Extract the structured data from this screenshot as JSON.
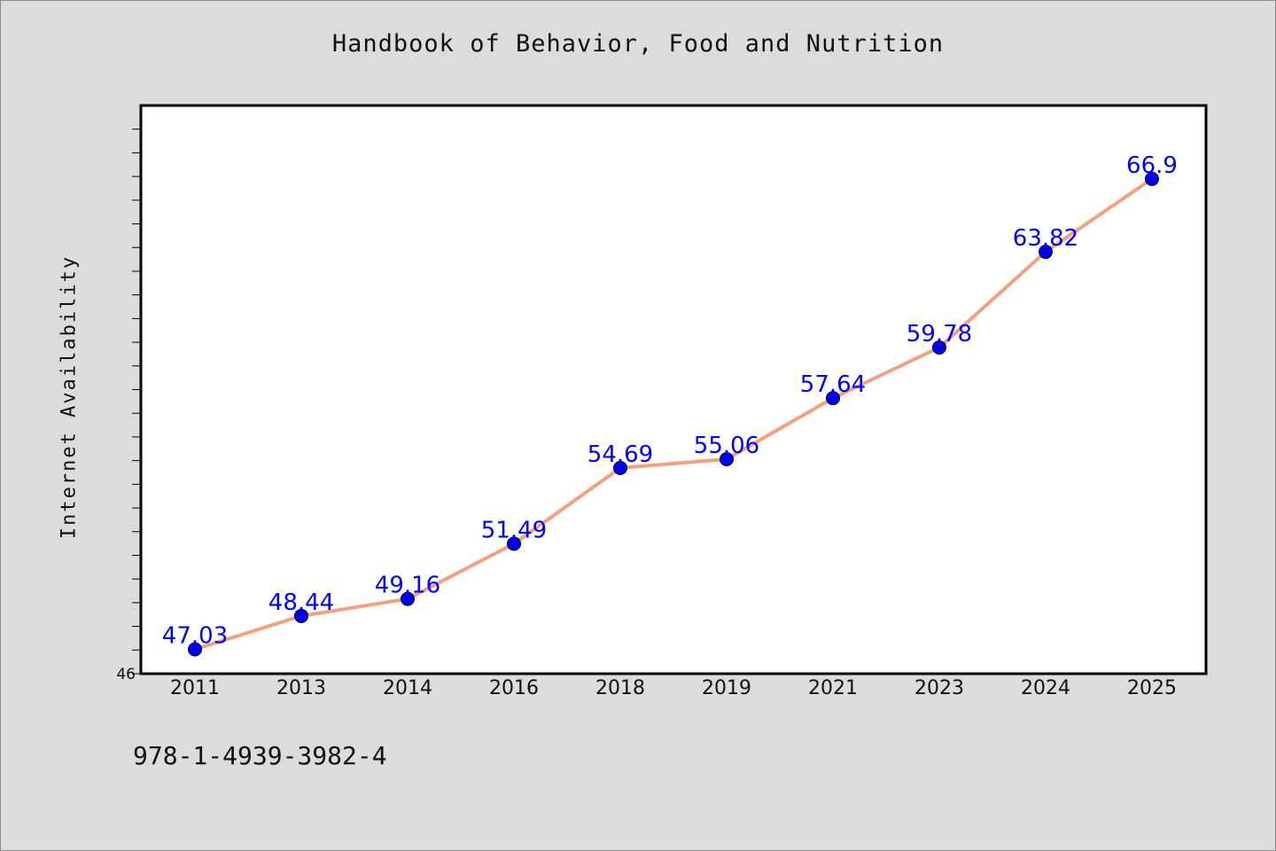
{
  "title": "Handbook of Behavior, Food and Nutrition",
  "footer_code": "978-1-4939-3982-4",
  "colors": {
    "background": "#dcdcdc",
    "plot_bg": "#ffffff",
    "line": "#f4a07e",
    "marker": "#0000ee",
    "label": "#0000ff"
  },
  "chart_data": {
    "type": "line",
    "title": "Handbook of Behavior, Food and Nutrition",
    "xlabel": "",
    "ylabel": "Internet Availability",
    "categories": [
      "2011",
      "2013",
      "2014",
      "2016",
      "2018",
      "2019",
      "2021",
      "2023",
      "2024",
      "2025"
    ],
    "series": [
      {
        "values": [
          47.03,
          48.44,
          49.16,
          51.49,
          54.69,
          55.06,
          57.64,
          59.78,
          63.82,
          66.9
        ],
        "labels": [
          "47.03",
          "48.44",
          "49.16",
          "51.49",
          "54.69",
          "55.06",
          "57.64",
          "59.78",
          "63.82",
          "66.9"
        ]
      }
    ],
    "ylim": [
      46,
      70
    ],
    "y_tick_labels": [
      "46"
    ],
    "grid": false,
    "legend": "none"
  }
}
